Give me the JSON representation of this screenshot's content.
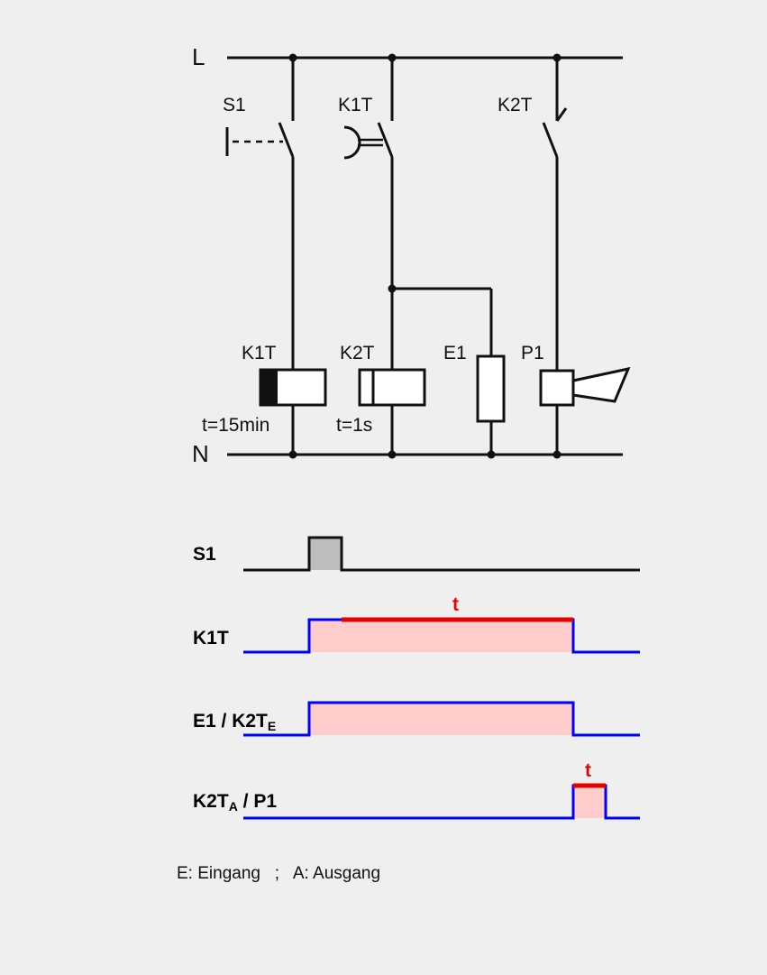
{
  "diagram": {
    "rails": {
      "top": "L",
      "bottom": "N"
    },
    "contacts": {
      "s1": "S1",
      "k1t": "K1T",
      "k2t": "K2T"
    },
    "components": {
      "k1t_coil": "K1T",
      "k2t_coil": "K2T",
      "e1": "E1",
      "p1": "P1",
      "k1t_time": "t=15min",
      "k2t_time": "t=1s"
    }
  },
  "timing": {
    "rows": {
      "s1": {
        "label": "S1"
      },
      "k1t": {
        "label": "K1T"
      },
      "e1": {
        "label_a": "E1 / K2T",
        "label_sub": "E"
      },
      "k2t": {
        "label_a": "K2T",
        "label_sub": "A",
        "label_b": " / P1"
      }
    },
    "t_label": "t",
    "colors": {
      "s1_line": "#111111",
      "signal": "#0000ff",
      "timer": "#e60000",
      "active_fill": "#ffcccc",
      "s1_fill": "#bdbdbd"
    }
  },
  "legend": {
    "text": "E: Eingang   ;   A: Ausgang"
  }
}
